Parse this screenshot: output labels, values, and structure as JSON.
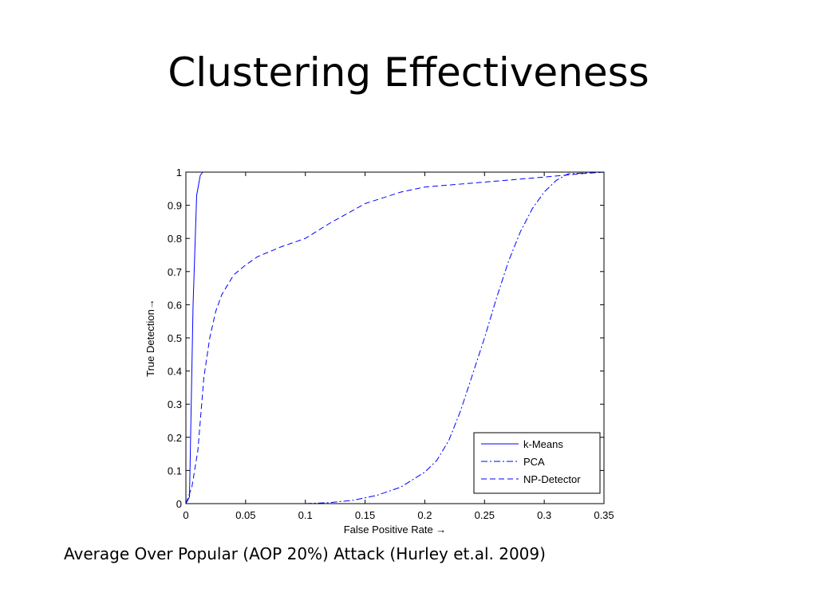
{
  "slide": {
    "title": "Clustering Effectiveness",
    "caption": "Average Over Popular (AOP 20%) Attack (Hurley  et.al. 2009)"
  },
  "chart_data": {
    "type": "line",
    "xlabel": "False Positive Rate →",
    "ylabel": "True Detection→",
    "xlim": [
      0,
      0.35
    ],
    "ylim": [
      0,
      1
    ],
    "xticks": [
      "0",
      "0.05",
      "0.1",
      "0.15",
      "0.2",
      "0.25",
      "0.3",
      "0.35"
    ],
    "yticks": [
      "0",
      "0.1",
      "0.2",
      "0.3",
      "0.4",
      "0.5",
      "0.6",
      "0.7",
      "0.8",
      "0.9",
      "1"
    ],
    "grid": false,
    "legend_position": "bottom-right",
    "series_color": "#0000ff",
    "series": [
      {
        "name": "k-Means",
        "style": "solid",
        "x": [
          0,
          0.003,
          0.006,
          0.009,
          0.012,
          0.014,
          0.05,
          0.1,
          0.15,
          0.175
        ],
        "y": [
          0,
          0.02,
          0.6,
          0.93,
          0.99,
          1.0,
          1.0,
          1.0,
          1.0,
          1.0
        ]
      },
      {
        "name": "PCA",
        "style": "dashdot",
        "x": [
          0.1,
          0.12,
          0.14,
          0.16,
          0.18,
          0.2,
          0.21,
          0.22,
          0.23,
          0.24,
          0.25,
          0.26,
          0.27,
          0.28,
          0.29,
          0.3,
          0.31,
          0.32,
          0.35
        ],
        "y": [
          0.0,
          0.003,
          0.01,
          0.025,
          0.05,
          0.095,
          0.13,
          0.19,
          0.28,
          0.39,
          0.5,
          0.62,
          0.73,
          0.82,
          0.89,
          0.94,
          0.975,
          0.995,
          1.0
        ]
      },
      {
        "name": "NP-Detector",
        "style": "dashed",
        "x": [
          0,
          0.005,
          0.01,
          0.015,
          0.02,
          0.025,
          0.03,
          0.04,
          0.05,
          0.06,
          0.08,
          0.1,
          0.12,
          0.15,
          0.18,
          0.2,
          0.25,
          0.3,
          0.33,
          0.35
        ],
        "y": [
          0,
          0.05,
          0.16,
          0.38,
          0.5,
          0.58,
          0.63,
          0.69,
          0.72,
          0.745,
          0.775,
          0.8,
          0.845,
          0.905,
          0.94,
          0.955,
          0.97,
          0.985,
          0.995,
          1.0
        ]
      }
    ]
  }
}
